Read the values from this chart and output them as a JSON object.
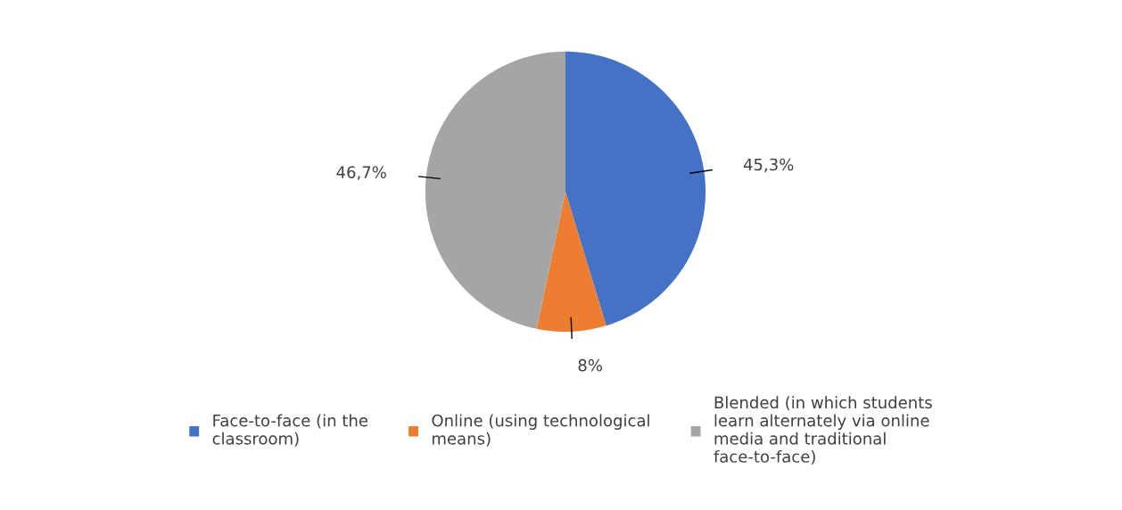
{
  "chart_data": {
    "type": "pie",
    "categories": [
      "Face-to-face (in the classroom)",
      "Online (using technological means)",
      "Blended (in which students learn alternately via online media and traditional face-to-face)"
    ],
    "values": [
      45.3,
      8,
      46.7
    ],
    "colors": [
      "#4472c4",
      "#ed7d31",
      "#a5a5a5"
    ],
    "value_labels": [
      "45,3%",
      "8%",
      "46,7%"
    ],
    "legend": "bottom"
  }
}
